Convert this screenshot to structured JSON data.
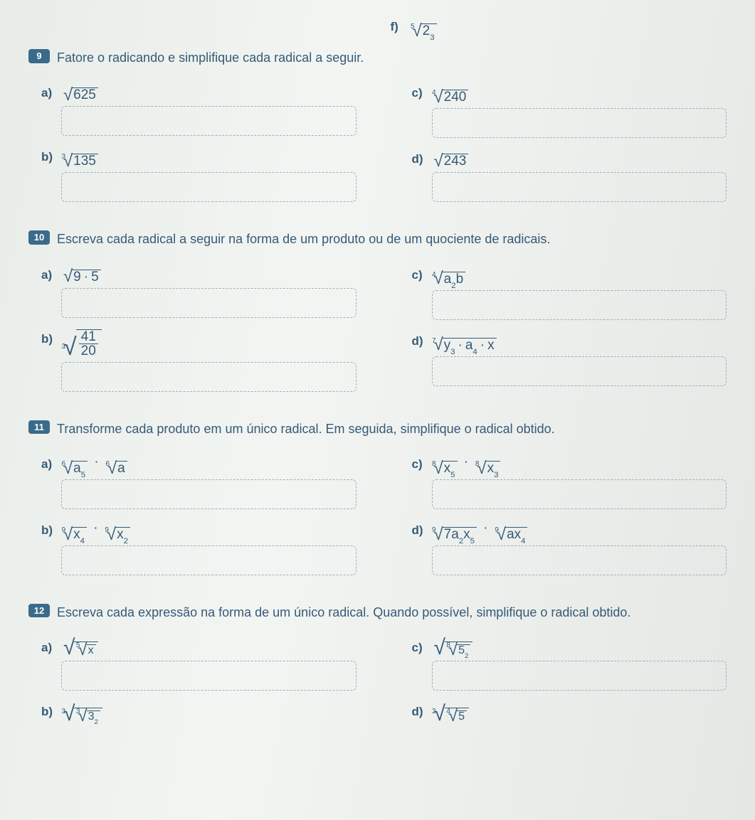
{
  "lang": "pt-BR",
  "colors": {
    "text": "#355a78",
    "badge_bg": "#3a6b8a",
    "badge_fg": "#ffffff",
    "box_border": "#9fb0bb",
    "page_bg": "#e9ede9"
  },
  "top_item": {
    "label": "f)",
    "index": "5",
    "radicand": "2",
    "exponent": "3"
  },
  "questions": [
    {
      "number": "9",
      "prompt": "Fatore o radicando e simplifique cada radical a seguir.",
      "left": [
        {
          "label": "a)",
          "index": "",
          "radicand": "625"
        },
        {
          "label": "b)",
          "index": "3",
          "radicand": "135"
        }
      ],
      "right": [
        {
          "label": "c)",
          "index": "4",
          "radicand": "240"
        },
        {
          "label": "d)",
          "index": "",
          "radicand": "243"
        }
      ]
    },
    {
      "number": "10",
      "prompt": "Escreva cada radical a seguir na forma de um produto ou de um quociente de radicais.",
      "left": [
        {
          "label": "a)",
          "type": "product_under_sqrt",
          "index": "",
          "a": "9",
          "b": "5"
        },
        {
          "label": "b)",
          "type": "frac_under_root",
          "index": "3",
          "num": "41",
          "den": "20"
        }
      ],
      "right": [
        {
          "label": "c)",
          "type": "simple",
          "index": "4",
          "radicand_html": "a<sup>2</sup>b"
        },
        {
          "label": "d)",
          "type": "product3_under_root",
          "index": "7",
          "t1": "y",
          "e1": "3",
          "t2": "a",
          "e2": "4",
          "t3": "x",
          "e3": ""
        }
      ]
    },
    {
      "number": "11",
      "prompt": "Transforme cada produto em um único radical. Em seguida, simplifique o radical obtido.",
      "left": [
        {
          "label": "a)",
          "type": "rad_times_rad",
          "r1_index": "6",
          "r1_body": "a<sup>5</sup>",
          "r2_index": "6",
          "r2_body": "a"
        },
        {
          "label": "b)",
          "type": "rad_times_rad",
          "r1_index": "9",
          "r1_body": "x<sup>4</sup>",
          "r2_index": "9",
          "r2_body": "x<sup>2</sup>"
        }
      ],
      "right": [
        {
          "label": "c)",
          "type": "rad_times_rad",
          "r1_index": "8",
          "r1_body": "x<sup>5</sup>",
          "r2_index": "8",
          "r2_body": "x<sup>3</sup>"
        },
        {
          "label": "d)",
          "type": "rad_times_rad",
          "r1_index": "9",
          "r1_body": "7a<sup>2</sup>x<sup>5</sup>",
          "r2_index": "9",
          "r2_body": "ax<sup>4</sup>"
        }
      ]
    },
    {
      "number": "12",
      "prompt": "Escreva cada expressão na forma de um único radical. Quando possível, simplifique o radical obtido.",
      "left": [
        {
          "label": "a)",
          "type": "nested",
          "outer_index": "",
          "inner_index": "5",
          "inner_body": "x"
        },
        {
          "label": "b)",
          "type": "nested",
          "outer_index": "3",
          "inner_index": "3",
          "inner_body": "3<sup>2</sup>"
        }
      ],
      "right": [
        {
          "label": "c)",
          "type": "nested",
          "outer_index": "",
          "inner_index": "8",
          "inner_body": "5<sup>2</sup>"
        },
        {
          "label": "d)",
          "type": "nested",
          "outer_index": "3",
          "inner_index": "4",
          "inner_body": "5"
        }
      ]
    }
  ]
}
